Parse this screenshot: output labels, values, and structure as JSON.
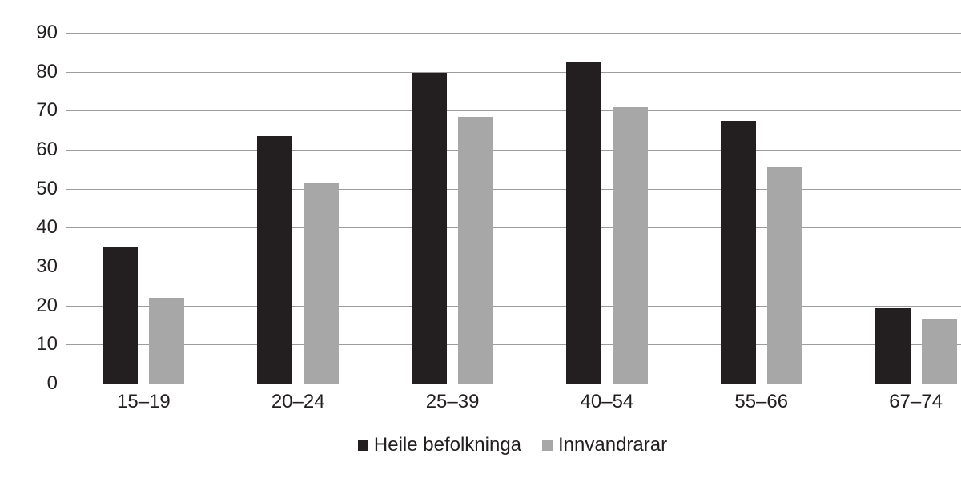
{
  "chart_data": {
    "type": "bar",
    "title": "",
    "xlabel": "",
    "ylabel": "",
    "categories": [
      "15–19",
      "20–24",
      "25–39",
      "40–54",
      "55–66",
      "67–74"
    ],
    "series": [
      {
        "name": "Heile befolkninga",
        "color": "#231f20",
        "values": [
          35.0,
          63.5,
          79.8,
          82.5,
          67.3,
          19.3
        ]
      },
      {
        "name": "Innvandrarar",
        "color": "#a7a7a7",
        "values": [
          22.0,
          51.3,
          68.5,
          70.8,
          55.7,
          16.4
        ]
      }
    ],
    "ylim": [
      0,
      90
    ],
    "ytick_step": 10,
    "yticks": [
      "0",
      "10",
      "20",
      "30",
      "40",
      "50",
      "60",
      "70",
      "80",
      "90"
    ],
    "grid": true,
    "gridline_color": "#9c9c9c",
    "legend_position": "bottom-center",
    "background_color": "#ffffff",
    "text_color": "#231f20"
  }
}
